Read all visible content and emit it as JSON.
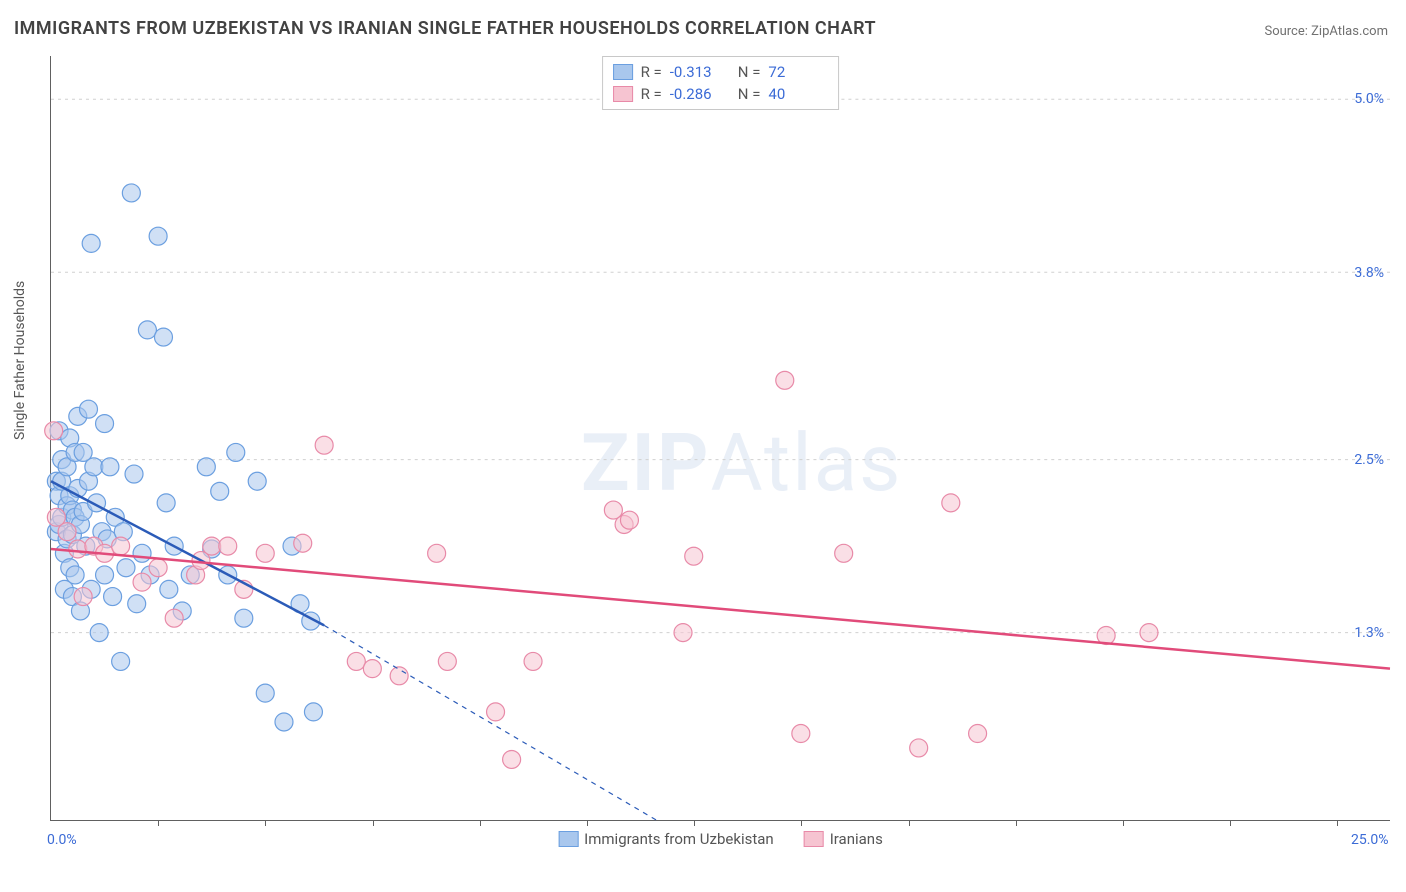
{
  "title": "IMMIGRANTS FROM UZBEKISTAN VS IRANIAN SINGLE FATHER HOUSEHOLDS CORRELATION CHART",
  "source_prefix": "Source: ",
  "source": "ZipAtlas.com",
  "ylabel": "Single Father Households",
  "watermark_zip": "ZIP",
  "watermark_atlas": "Atlas",
  "chart": {
    "type": "scatter",
    "background_color": "#ffffff",
    "grid_color": "#d0d0d0",
    "axis_color": "#606060",
    "tick_color": "#3b6bd6",
    "xlim": [
      0.0,
      25.0
    ],
    "ylim": [
      0.0,
      5.3
    ],
    "y_ticks": [
      {
        "value": 1.3,
        "label": "1.3%"
      },
      {
        "value": 2.5,
        "label": "2.5%"
      },
      {
        "value": 3.8,
        "label": "3.8%"
      },
      {
        "value": 5.0,
        "label": "5.0%"
      }
    ],
    "x_ticks": [
      {
        "value": 0.0,
        "label": "0.0%"
      },
      {
        "value": 25.0,
        "label": "25.0%"
      }
    ],
    "x_minor_ticks": [
      2.0,
      4.0,
      6.0,
      8.0,
      10.0,
      12.0,
      14.0,
      16.0,
      18.0,
      20.0,
      22.0,
      24.0
    ],
    "marker_radius": 9,
    "series": [
      {
        "key": "uzbekistan",
        "label": "Immigrants from Uzbekistan",
        "color_fill": "#a9c7ed",
        "color_stroke": "#6b9fe0",
        "r_value": "-0.313",
        "n_value": "72",
        "trend": {
          "x1": 0.0,
          "y1": 2.35,
          "x2": 5.1,
          "y2": 1.35,
          "dash_x1": 5.1,
          "dash_y1": 1.35,
          "dash_x2": 11.3,
          "dash_y2": 0.0,
          "color": "#2b5bb8",
          "width": 2.5
        },
        "points": [
          [
            0.1,
            2.35
          ],
          [
            0.1,
            2.0
          ],
          [
            0.15,
            2.7
          ],
          [
            0.15,
            2.25
          ],
          [
            0.15,
            2.05
          ],
          [
            0.2,
            2.5
          ],
          [
            0.2,
            2.35
          ],
          [
            0.2,
            2.1
          ],
          [
            0.25,
            1.85
          ],
          [
            0.25,
            1.6
          ],
          [
            0.3,
            2.45
          ],
          [
            0.3,
            2.18
          ],
          [
            0.3,
            1.95
          ],
          [
            0.35,
            2.65
          ],
          [
            0.35,
            2.25
          ],
          [
            0.35,
            1.75
          ],
          [
            0.4,
            2.15
          ],
          [
            0.4,
            1.98
          ],
          [
            0.4,
            1.55
          ],
          [
            0.45,
            2.55
          ],
          [
            0.45,
            2.1
          ],
          [
            0.45,
            1.7
          ],
          [
            0.5,
            2.8
          ],
          [
            0.5,
            2.3
          ],
          [
            0.55,
            2.05
          ],
          [
            0.55,
            1.45
          ],
          [
            0.6,
            2.55
          ],
          [
            0.6,
            2.14
          ],
          [
            0.65,
            1.9
          ],
          [
            0.7,
            2.85
          ],
          [
            0.7,
            2.35
          ],
          [
            0.75,
            4.0
          ],
          [
            0.75,
            1.6
          ],
          [
            0.8,
            2.45
          ],
          [
            0.85,
            2.2
          ],
          [
            0.9,
            1.3
          ],
          [
            0.95,
            2.0
          ],
          [
            1.0,
            2.75
          ],
          [
            1.0,
            1.7
          ],
          [
            1.05,
            1.95
          ],
          [
            1.1,
            2.45
          ],
          [
            1.15,
            1.55
          ],
          [
            1.2,
            2.1
          ],
          [
            1.3,
            1.1
          ],
          [
            1.35,
            2.0
          ],
          [
            1.4,
            1.75
          ],
          [
            1.5,
            4.35
          ],
          [
            1.55,
            2.4
          ],
          [
            1.6,
            1.5
          ],
          [
            1.7,
            1.85
          ],
          [
            1.8,
            3.4
          ],
          [
            1.85,
            1.7
          ],
          [
            2.0,
            4.05
          ],
          [
            2.1,
            3.35
          ],
          [
            2.15,
            2.2
          ],
          [
            2.2,
            1.6
          ],
          [
            2.3,
            1.9
          ],
          [
            2.45,
            1.45
          ],
          [
            2.6,
            1.7
          ],
          [
            2.9,
            2.45
          ],
          [
            3.0,
            1.88
          ],
          [
            3.15,
            2.28
          ],
          [
            3.3,
            1.7
          ],
          [
            3.45,
            2.55
          ],
          [
            3.6,
            1.4
          ],
          [
            3.85,
            2.35
          ],
          [
            4.0,
            0.88
          ],
          [
            4.35,
            0.68
          ],
          [
            4.5,
            1.9
          ],
          [
            4.85,
            1.38
          ],
          [
            4.65,
            1.5
          ],
          [
            4.9,
            0.75
          ]
        ]
      },
      {
        "key": "iranians",
        "label": "Iranians",
        "color_fill": "#f6c4d1",
        "color_stroke": "#e88aa8",
        "r_value": "-0.286",
        "n_value": "40",
        "trend": {
          "x1": 0.0,
          "y1": 1.88,
          "x2": 25.0,
          "y2": 1.05,
          "dash_x1": 25.0,
          "dash_y1": 1.05,
          "dash_x2": 25.0,
          "dash_y2": 1.05,
          "color": "#e14b7a",
          "width": 2.5
        },
        "points": [
          [
            0.05,
            2.7
          ],
          [
            0.1,
            2.1
          ],
          [
            0.3,
            2.0
          ],
          [
            0.5,
            1.88
          ],
          [
            0.6,
            1.55
          ],
          [
            0.8,
            1.9
          ],
          [
            1.0,
            1.85
          ],
          [
            1.3,
            1.9
          ],
          [
            1.7,
            1.65
          ],
          [
            2.0,
            1.75
          ],
          [
            2.3,
            1.4
          ],
          [
            2.7,
            1.7
          ],
          [
            2.8,
            1.8
          ],
          [
            3.0,
            1.9
          ],
          [
            3.3,
            1.9
          ],
          [
            3.6,
            1.6
          ],
          [
            4.0,
            1.85
          ],
          [
            4.7,
            1.92
          ],
          [
            5.1,
            2.6
          ],
          [
            5.7,
            1.1
          ],
          [
            6.0,
            1.05
          ],
          [
            6.5,
            1.0
          ],
          [
            7.2,
            1.85
          ],
          [
            7.4,
            1.1
          ],
          [
            8.3,
            0.75
          ],
          [
            8.6,
            0.42
          ],
          [
            9.0,
            1.1
          ],
          [
            10.5,
            2.15
          ],
          [
            10.7,
            2.05
          ],
          [
            10.8,
            2.08
          ],
          [
            11.8,
            1.3
          ],
          [
            12.0,
            1.83
          ],
          [
            13.7,
            3.05
          ],
          [
            14.0,
            0.6
          ],
          [
            14.8,
            1.85
          ],
          [
            16.2,
            0.5
          ],
          [
            16.8,
            2.2
          ],
          [
            19.7,
            1.28
          ],
          [
            20.5,
            1.3
          ],
          [
            17.3,
            0.6
          ]
        ]
      }
    ],
    "legend_top": {
      "r_label": "R =",
      "n_label": "N ="
    }
  }
}
